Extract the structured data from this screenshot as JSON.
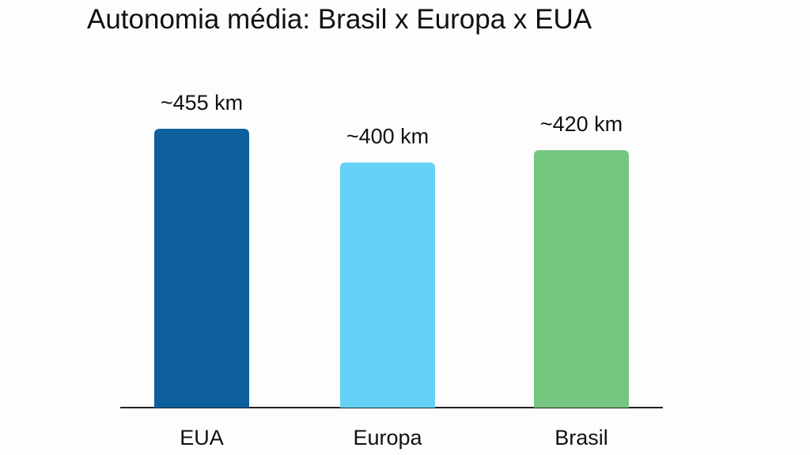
{
  "chart_data": {
    "type": "bar",
    "title": "Autonomia média: Brasil x Europa x EUA",
    "categories": [
      "EUA",
      "Europa",
      "Brasil"
    ],
    "values": [
      455,
      400,
      420
    ],
    "value_labels": [
      "~455 km",
      "~400 km",
      "~420 km"
    ],
    "colors": [
      "#0d5f9e",
      "#66d1f7",
      "#74c67e"
    ]
  }
}
